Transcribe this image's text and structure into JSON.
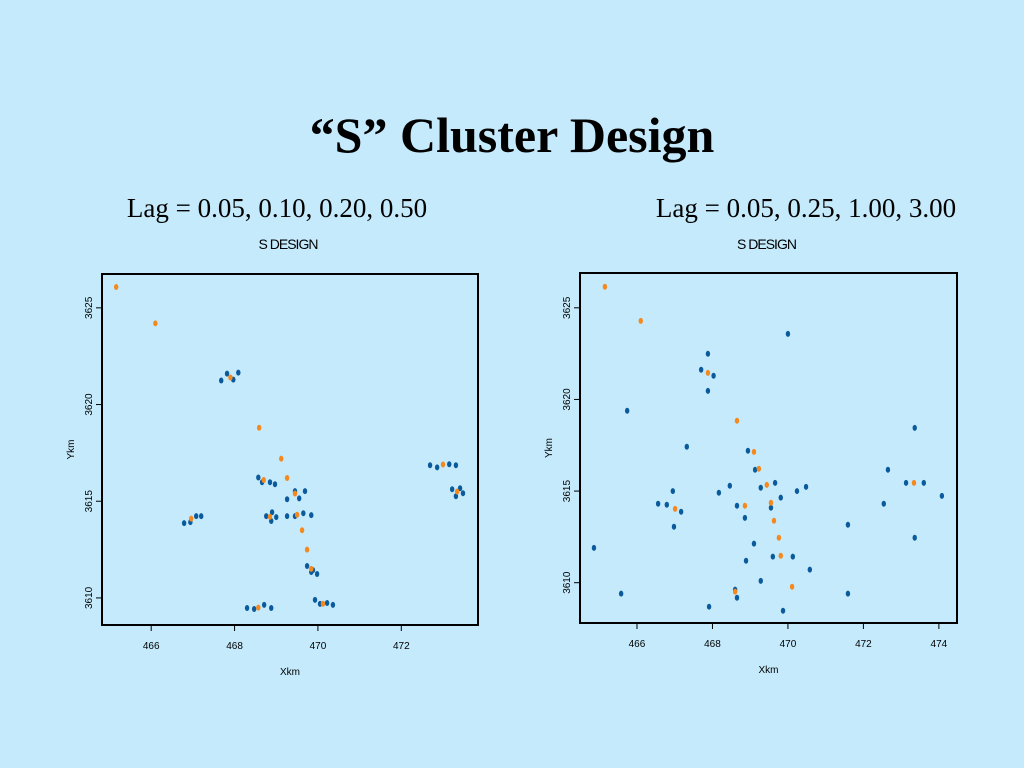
{
  "title": "“S” Cluster Design",
  "chart_data": [
    {
      "type": "scatter",
      "subtitle": "Lag = 0.05, 0.10, 0.20, 0.50",
      "title": "S DESIGN",
      "x_label": "Xkm",
      "y_label": "Ykm",
      "xlim": [
        464.82,
        473.84
      ],
      "ylim": [
        3608.6,
        3626.75
      ],
      "xticks": [
        466,
        468,
        470,
        472
      ],
      "yticks": [
        3610,
        3615,
        3620,
        3625
      ],
      "series": [
        {
          "color": "#0b5b9c",
          "x": [
            467.68,
            468.09,
            467.82,
            467.97,
            468.57,
            468.66,
            468.85,
            468.97,
            469.26,
            469.45,
            469.55,
            469.69,
            469.26,
            469.45,
            469.65,
            469.84,
            468.76,
            468.9,
            468.88,
            469.0,
            466.79,
            466.94,
            467.08,
            467.2,
            469.74,
            469.88,
            469.98,
            469.84,
            469.93,
            470.05,
            470.22,
            470.36,
            468.3,
            468.47,
            468.71,
            468.88,
            472.69,
            472.86,
            473.15,
            473.31,
            473.22,
            473.41,
            473.31,
            473.48
          ],
          "values": [
            3621.24,
            3621.65,
            3621.6,
            3621.29,
            3616.23,
            3615.98,
            3615.98,
            3615.88,
            3615.1,
            3615.52,
            3615.15,
            3615.52,
            3614.23,
            3614.23,
            3614.38,
            3614.28,
            3614.23,
            3614.43,
            3613.98,
            3614.18,
            3613.87,
            3613.92,
            3614.23,
            3614.23,
            3611.65,
            3611.44,
            3611.24,
            3611.34,
            3609.9,
            3609.69,
            3609.74,
            3609.64,
            3609.48,
            3609.43,
            3609.64,
            3609.48,
            3616.86,
            3616.75,
            3616.91,
            3616.86,
            3615.62,
            3615.67,
            3615.26,
            3615.41
          ]
        },
        {
          "color": "#f5891e",
          "x": [
            465.16,
            466.1,
            468.59,
            469.12,
            469.26,
            469.62,
            469.74,
            467.9,
            468.7,
            469.45,
            469.5,
            468.85,
            466.96,
            469.84,
            470.12,
            468.57,
            473.0,
            473.34
          ],
          "values": [
            3626.08,
            3624.2,
            3618.8,
            3617.2,
            3616.2,
            3613.5,
            3612.5,
            3621.4,
            3616.1,
            3615.4,
            3614.3,
            3614.2,
            3614.1,
            3611.5,
            3609.7,
            3609.5,
            3616.9,
            3615.5
          ]
        }
      ]
    },
    {
      "type": "scatter",
      "subtitle": "Lag = 0.05, 0.25, 1.00, 3.00",
      "title": "S DESIGN",
      "x_label": "Xkm",
      "y_label": "Ykm",
      "xlim": [
        464.49,
        474.48
      ],
      "ylim": [
        3607.8,
        3626.9
      ],
      "xticks": [
        466,
        468,
        470,
        472,
        474
      ],
      "yticks": [
        3610,
        3615,
        3620,
        3625
      ],
      "series": [
        {
          "color": "#0b5b9c",
          "x": [
            464.86,
            465.58,
            465.74,
            467.32,
            466.56,
            466.79,
            466.95,
            466.98,
            467.17,
            467.88,
            467.88,
            467.7,
            468.03,
            467.91,
            468.17,
            468.46,
            468.65,
            468.86,
            468.94,
            468.89,
            469.1,
            469.13,
            469.28,
            469.28,
            469.55,
            469.66,
            469.81,
            469.6,
            469.87,
            470.0,
            470.13,
            470.24,
            470.48,
            470.58,
            471.59,
            471.59,
            472.54,
            472.65,
            473.13,
            473.36,
            473.36,
            473.6,
            474.08,
            468.6,
            468.65
          ],
          "values": [
            3611.9,
            3609.4,
            3619.38,
            3617.42,
            3614.31,
            3614.25,
            3615.0,
            3613.05,
            3613.87,
            3622.49,
            3620.47,
            3621.62,
            3621.29,
            3608.69,
            3614.91,
            3615.29,
            3614.2,
            3613.54,
            3617.2,
            3611.2,
            3612.13,
            3616.16,
            3610.1,
            3615.18,
            3614.09,
            3615.45,
            3614.64,
            3611.42,
            3608.47,
            3623.58,
            3611.42,
            3615.0,
            3615.23,
            3610.71,
            3613.16,
            3609.4,
            3614.31,
            3616.16,
            3615.45,
            3618.45,
            3612.45,
            3615.45,
            3614.74,
            3609.62,
            3609.18
          ]
        },
        {
          "color": "#f5891e",
          "x": [
            465.15,
            466.1,
            468.65,
            469.1,
            469.23,
            469.44,
            469.55,
            469.63,
            469.76,
            470.11,
            467.88,
            468.86,
            467.01,
            468.6,
            469.81,
            473.34
          ],
          "values": [
            3626.15,
            3624.29,
            3618.84,
            3617.14,
            3616.22,
            3615.34,
            3614.36,
            3613.38,
            3612.45,
            3609.78,
            3621.45,
            3614.2,
            3614.03,
            3609.51,
            3611.47,
            3615.45
          ]
        }
      ]
    }
  ]
}
